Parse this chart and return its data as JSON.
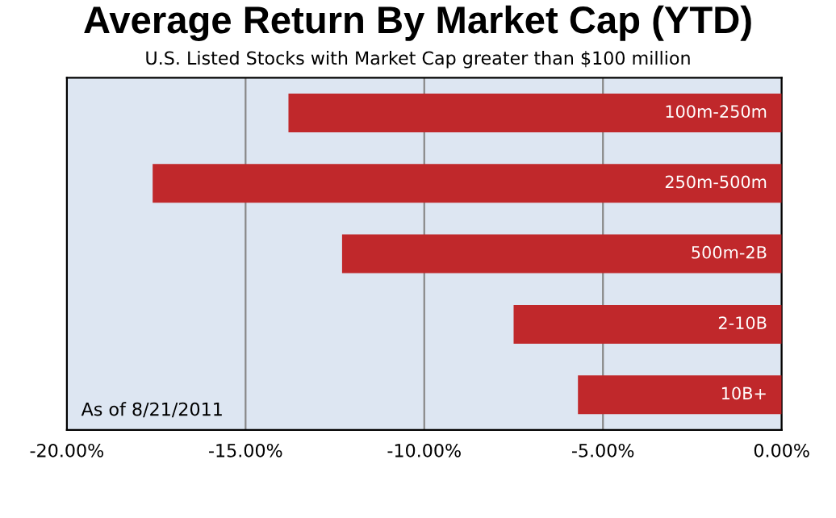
{
  "chart_data": {
    "type": "bar",
    "orientation": "horizontal",
    "title": "Average Return By Market Cap (YTD)",
    "subtitle": "U.S. Listed Stocks with Market Cap greater than $100 million",
    "categories": [
      "100m-250m",
      "250m-500m",
      "500m-2B",
      "2-10B",
      "10B+"
    ],
    "values": [
      -13.8,
      -17.6,
      -12.3,
      -7.5,
      -5.7
    ],
    "color": "#c0282b",
    "xlim": [
      -20,
      0
    ],
    "xticks": [
      {
        "value": -20,
        "label": "-20.00%"
      },
      {
        "value": -15,
        "label": "-15.00%"
      },
      {
        "value": -10,
        "label": "-10.00%"
      },
      {
        "value": -5,
        "label": "-5.00%"
      },
      {
        "value": 0,
        "label": "0.00%"
      }
    ],
    "grid": "x",
    "annotations": [
      "As of 8/21/2011"
    ]
  }
}
